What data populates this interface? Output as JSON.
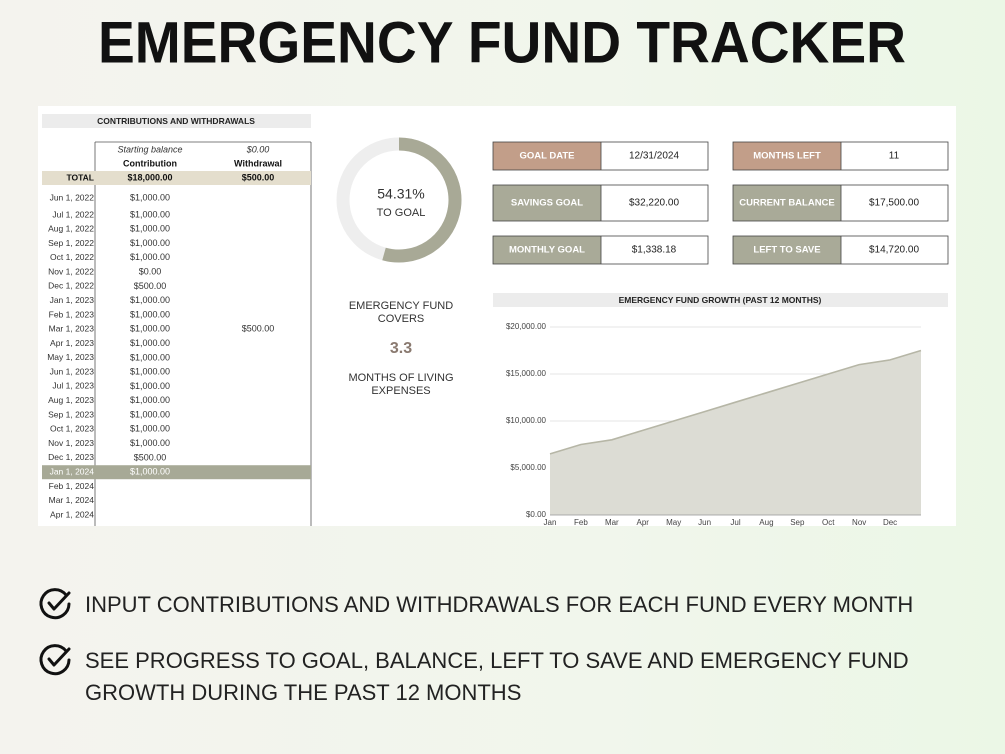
{
  "header": {
    "title": "EMERGENCY FUND TRACKER"
  },
  "ledger": {
    "title": "CONTRIBUTIONS AND WITHDRAWALS",
    "starting_balance": {
      "label": "Starting balance",
      "value": "$0.00"
    },
    "columns": [
      "Contribution",
      "Withdrawal"
    ],
    "total": {
      "label": "TOTAL",
      "contribution": "$18,000.00",
      "withdrawal": "$500.00"
    },
    "rows": [
      [
        "Jun 1, 2022",
        "$1,000.00"
      ],
      [
        "Jul 1, 2022",
        "$1,000.00"
      ],
      [
        "Aug 1, 2022",
        "$1,000.00"
      ],
      [
        "Sep 1, 2022",
        "$1,000.00"
      ],
      [
        "Oct 1, 2022",
        "$1,000.00"
      ],
      [
        "Nov 1, 2022",
        "$0.00"
      ],
      [
        "Dec 1, 2022",
        "$500.00"
      ],
      [
        "Jan 1, 2023",
        "$1,000.00"
      ],
      [
        "Feb 1, 2023",
        "$1,000.00"
      ],
      [
        "Mar 1, 2023",
        "$1,000.00",
        "$500.00"
      ],
      [
        "Apr 1, 2023",
        "$1,000.00"
      ],
      [
        "May 1, 2023",
        "$1,000.00"
      ],
      [
        "Jun 1, 2023",
        "$1,000.00"
      ],
      [
        "Jul 1, 2023",
        "$1,000.00"
      ],
      [
        "Aug 1, 2023",
        "$1,000.00"
      ],
      [
        "Sep 1, 2023",
        "$1,000.00"
      ],
      [
        "Oct 1, 2023",
        "$1,000.00"
      ],
      [
        "Nov 1, 2023",
        "$1,000.00"
      ],
      [
        "Dec 1, 2023",
        "$500.00"
      ],
      [
        "Jan 1, 2024",
        "$1,000.00"
      ],
      [
        "Feb 1, 2024"
      ],
      [
        "Mar 1, 2024"
      ],
      [
        "Apr 1, 2024"
      ]
    ],
    "current_row": 19
  },
  "progress": {
    "value": 54.31,
    "label": "54.31%",
    "caption": "TO GOAL",
    "color": "#a8a996"
  },
  "coverage": {
    "heading": "EMERGENCY FUND COVERS",
    "value": "3.3",
    "caption": "MONTHS OF LIVING EXPENSES"
  },
  "kpis": [
    {
      "label": "GOAL DATE",
      "value": "12/31/2024"
    },
    {
      "label": "MONTHS LEFT",
      "value": "11"
    },
    {
      "label": "SAVINGS GOAL",
      "value": "$32,220.00"
    },
    {
      "label": "CURRENT BALANCE",
      "value": "$17,500.00"
    },
    {
      "label": "MONTHLY GOAL",
      "value": "$1,338.18"
    },
    {
      "label": "LEFT TO SAVE",
      "value": "$14,720.00"
    }
  ],
  "chart_data": {
    "type": "area",
    "title": "EMERGENCY FUND GROWTH (PAST 12 MONTHS)",
    "categories": [
      "Jan",
      "Feb",
      "Mar",
      "Apr",
      "May",
      "Jun",
      "Jul",
      "Aug",
      "Sep",
      "Oct",
      "Nov",
      "Dec",
      null
    ],
    "values": [
      6500,
      7500,
      8000,
      9000,
      10000,
      11000,
      12000,
      13000,
      14000,
      15000,
      16000,
      16500,
      17500
    ],
    "color": "#dcdcd4",
    "line_color": "#b6b6a6",
    "ylim": [
      0,
      20000
    ],
    "yticks": [
      {
        "value": 0,
        "label": "$0.00"
      },
      {
        "value": 5000,
        "label": "$5,000.00"
      },
      {
        "value": 10000,
        "label": "$10,000.00"
      },
      {
        "value": 15000,
        "label": "$15,000.00"
      },
      {
        "value": 20000,
        "label": "$20,000.00"
      }
    ],
    "grid": true
  },
  "features": [
    "INPUT CONTRIBUTIONS AND WITHDRAWALS FOR EACH FUND EVERY MONTH",
    "SEE PROGRESS TO GOAL, BALANCE, LEFT TO SAVE AND EMERGENCY FUND GROWTH DURING THE PAST 12 MONTHS"
  ]
}
